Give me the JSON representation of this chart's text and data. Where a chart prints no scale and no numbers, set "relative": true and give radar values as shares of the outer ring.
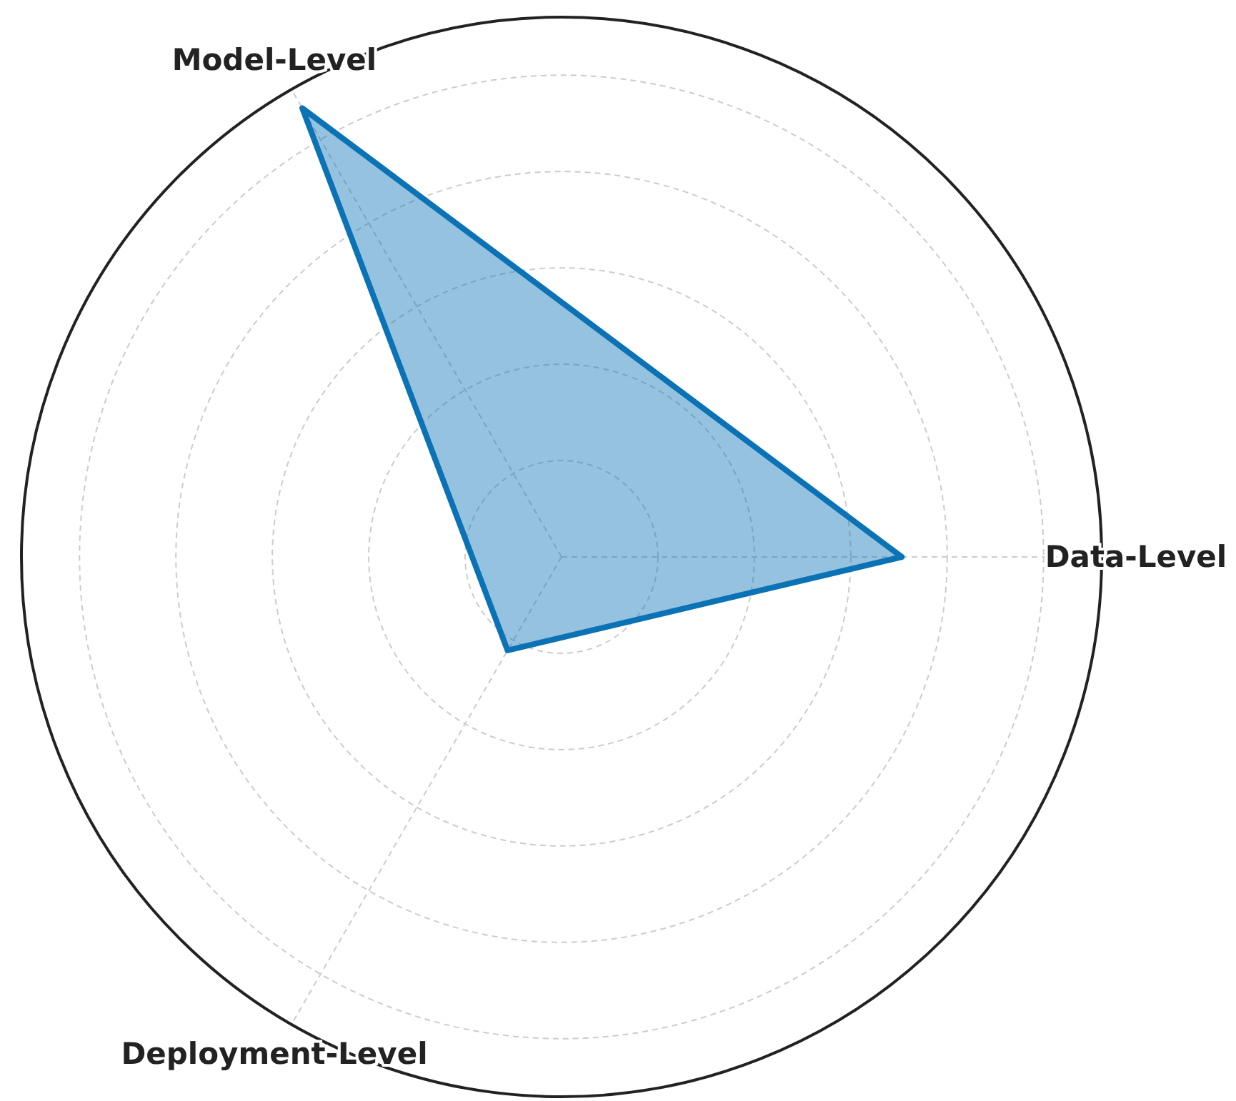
{
  "chart_data": {
    "type": "radar",
    "relative": true,
    "grid": true,
    "categories": [
      "Model-Level",
      "Data-Level",
      "Deployment-Level"
    ],
    "series": [
      {
        "color": "#0a72b5",
        "values": [
          0.96,
          0.63,
          0.2
        ]
      }
    ]
  }
}
